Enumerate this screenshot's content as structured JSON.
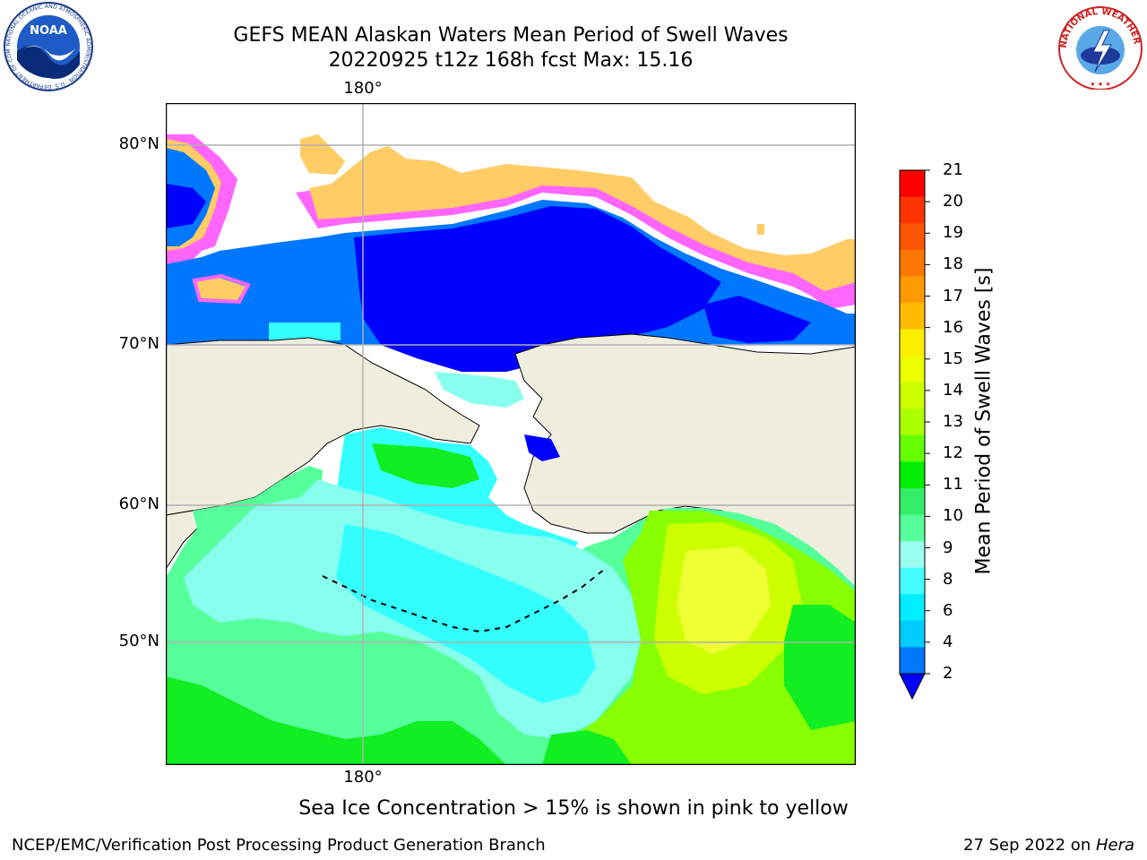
{
  "title": {
    "line1": "GEFS MEAN Alaskan Waters Mean Period of Swell Waves",
    "line2": "20220925 t12z 168h fcst   Max: 15.16"
  },
  "map": {
    "lat_labels": [
      "80°N",
      "70°N",
      "60°N",
      "50°N"
    ],
    "lon_label_top": "180°",
    "lon_label_bottom": "180°"
  },
  "colorbar": {
    "label": "Mean Period of Swell Waves [s]",
    "ticks": [
      "21",
      "20",
      "19",
      "18",
      "17",
      "16",
      "15",
      "14",
      "13",
      "12",
      "11",
      "10",
      "9",
      "8",
      "6",
      "4",
      "2"
    ],
    "colors": [
      "#ff0000",
      "#ff3300",
      "#ff5500",
      "#ff7700",
      "#ff9900",
      "#ffbb00",
      "#ffee00",
      "#eeff00",
      "#ccff00",
      "#aaff00",
      "#66ff00",
      "#00ee00",
      "#33ee66",
      "#55ff99",
      "#99ffee",
      "#44ffff",
      "#00eeff",
      "#00ccff",
      "#0077ff"
    ],
    "under_color": "#0000ff"
  },
  "palette": {
    "land": "#efedde",
    "ice_edge": "#ff66ff",
    "ice_inner": "#ffcc66",
    "deep_blue": "#0000ff",
    "blue": "#0077ff",
    "cyan": "#33ffff",
    "aqua": "#88ffee",
    "mint": "#55ff99",
    "green": "#11ee22",
    "lime": "#88ff00",
    "yellow_green": "#ccff00",
    "yellow": "#eeff33"
  },
  "caption": "Sea Ice Concentration > 15% is shown in pink to yellow",
  "footer": {
    "left": "NCEP/EMC/Verification Post Processing Product Generation Branch",
    "right_prefix": "27 Sep 2022 on ",
    "right_host": "Hera"
  },
  "logos": {
    "noaa_text": "NOAA",
    "noaa_ring": "NATIONAL OCEANIC AND ATMOSPHERIC ADMINISTRATION · U.S. DEPARTMENT OF COMMERCE",
    "nws_ring": "NATIONAL WEATHER SERVICE"
  }
}
